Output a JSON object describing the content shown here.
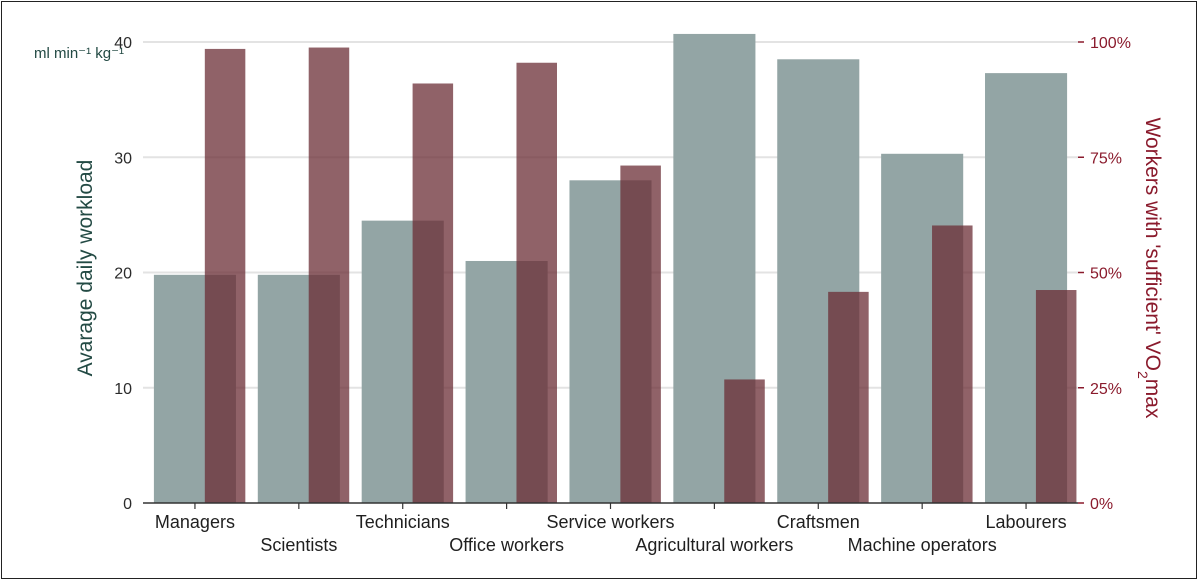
{
  "chart_data": {
    "type": "bar",
    "categories": [
      "Managers",
      "Scientists",
      "Technicians",
      "Office workers",
      "Service workers",
      "Agricultural workers",
      "Craftsmen",
      "Machine operators",
      "Labourers"
    ],
    "series": [
      {
        "axis": "left",
        "values": [
          19.8,
          19.8,
          24.5,
          21.0,
          28.0,
          40.7,
          38.5,
          30.3,
          37.3
        ],
        "color": "#93a5a5"
      },
      {
        "axis": "right",
        "values": [
          98.5,
          98.8,
          91.0,
          95.5,
          73.2,
          26.8,
          45.8,
          60.2,
          46.2
        ],
        "color": "#6b2e35",
        "opacity": 0.75
      }
    ],
    "ylabel": "Avarage daily workload",
    "yunit_line1": "ml min⁻¹ kg⁻¹",
    "ylim": [
      0,
      40
    ],
    "yticks": [
      "0",
      "10",
      "20",
      "30",
      "40"
    ],
    "y2label_main": "Workers with 'sufficient'  VO",
    "y2label_sub": "2",
    "y2label_end": "max",
    "y2lim": [
      0,
      100
    ],
    "y2ticks": [
      "0%",
      "25%",
      "50%",
      "75%",
      "100%"
    ],
    "grid": true,
    "legend": "none"
  }
}
